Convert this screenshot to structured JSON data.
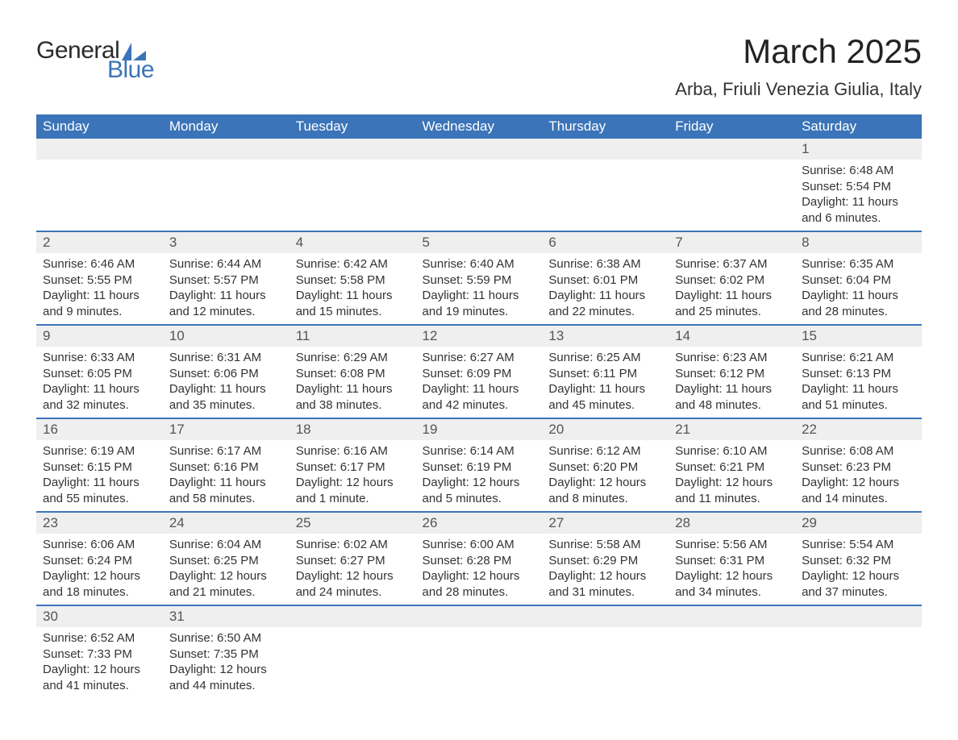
{
  "logo": {
    "general": "General",
    "blue": "Blue"
  },
  "title": "March 2025",
  "location": "Arba, Friuli Venezia Giulia, Italy",
  "colors": {
    "header_bg": "#3b74b8",
    "header_fg": "#ffffff",
    "daynum_bg": "#efefef",
    "border": "#3b74b8",
    "text": "#333333"
  },
  "day_names": [
    "Sunday",
    "Monday",
    "Tuesday",
    "Wednesday",
    "Thursday",
    "Friday",
    "Saturday"
  ],
  "weeks": [
    [
      null,
      null,
      null,
      null,
      null,
      null,
      {
        "n": "1",
        "sr": "Sunrise: 6:48 AM",
        "ss": "Sunset: 5:54 PM",
        "dl": "Daylight: 11 hours and 6 minutes."
      }
    ],
    [
      {
        "n": "2",
        "sr": "Sunrise: 6:46 AM",
        "ss": "Sunset: 5:55 PM",
        "dl": "Daylight: 11 hours and 9 minutes."
      },
      {
        "n": "3",
        "sr": "Sunrise: 6:44 AM",
        "ss": "Sunset: 5:57 PM",
        "dl": "Daylight: 11 hours and 12 minutes."
      },
      {
        "n": "4",
        "sr": "Sunrise: 6:42 AM",
        "ss": "Sunset: 5:58 PM",
        "dl": "Daylight: 11 hours and 15 minutes."
      },
      {
        "n": "5",
        "sr": "Sunrise: 6:40 AM",
        "ss": "Sunset: 5:59 PM",
        "dl": "Daylight: 11 hours and 19 minutes."
      },
      {
        "n": "6",
        "sr": "Sunrise: 6:38 AM",
        "ss": "Sunset: 6:01 PM",
        "dl": "Daylight: 11 hours and 22 minutes."
      },
      {
        "n": "7",
        "sr": "Sunrise: 6:37 AM",
        "ss": "Sunset: 6:02 PM",
        "dl": "Daylight: 11 hours and 25 minutes."
      },
      {
        "n": "8",
        "sr": "Sunrise: 6:35 AM",
        "ss": "Sunset: 6:04 PM",
        "dl": "Daylight: 11 hours and 28 minutes."
      }
    ],
    [
      {
        "n": "9",
        "sr": "Sunrise: 6:33 AM",
        "ss": "Sunset: 6:05 PM",
        "dl": "Daylight: 11 hours and 32 minutes."
      },
      {
        "n": "10",
        "sr": "Sunrise: 6:31 AM",
        "ss": "Sunset: 6:06 PM",
        "dl": "Daylight: 11 hours and 35 minutes."
      },
      {
        "n": "11",
        "sr": "Sunrise: 6:29 AM",
        "ss": "Sunset: 6:08 PM",
        "dl": "Daylight: 11 hours and 38 minutes."
      },
      {
        "n": "12",
        "sr": "Sunrise: 6:27 AM",
        "ss": "Sunset: 6:09 PM",
        "dl": "Daylight: 11 hours and 42 minutes."
      },
      {
        "n": "13",
        "sr": "Sunrise: 6:25 AM",
        "ss": "Sunset: 6:11 PM",
        "dl": "Daylight: 11 hours and 45 minutes."
      },
      {
        "n": "14",
        "sr": "Sunrise: 6:23 AM",
        "ss": "Sunset: 6:12 PM",
        "dl": "Daylight: 11 hours and 48 minutes."
      },
      {
        "n": "15",
        "sr": "Sunrise: 6:21 AM",
        "ss": "Sunset: 6:13 PM",
        "dl": "Daylight: 11 hours and 51 minutes."
      }
    ],
    [
      {
        "n": "16",
        "sr": "Sunrise: 6:19 AM",
        "ss": "Sunset: 6:15 PM",
        "dl": "Daylight: 11 hours and 55 minutes."
      },
      {
        "n": "17",
        "sr": "Sunrise: 6:17 AM",
        "ss": "Sunset: 6:16 PM",
        "dl": "Daylight: 11 hours and 58 minutes."
      },
      {
        "n": "18",
        "sr": "Sunrise: 6:16 AM",
        "ss": "Sunset: 6:17 PM",
        "dl": "Daylight: 12 hours and 1 minute."
      },
      {
        "n": "19",
        "sr": "Sunrise: 6:14 AM",
        "ss": "Sunset: 6:19 PM",
        "dl": "Daylight: 12 hours and 5 minutes."
      },
      {
        "n": "20",
        "sr": "Sunrise: 6:12 AM",
        "ss": "Sunset: 6:20 PM",
        "dl": "Daylight: 12 hours and 8 minutes."
      },
      {
        "n": "21",
        "sr": "Sunrise: 6:10 AM",
        "ss": "Sunset: 6:21 PM",
        "dl": "Daylight: 12 hours and 11 minutes."
      },
      {
        "n": "22",
        "sr": "Sunrise: 6:08 AM",
        "ss": "Sunset: 6:23 PM",
        "dl": "Daylight: 12 hours and 14 minutes."
      }
    ],
    [
      {
        "n": "23",
        "sr": "Sunrise: 6:06 AM",
        "ss": "Sunset: 6:24 PM",
        "dl": "Daylight: 12 hours and 18 minutes."
      },
      {
        "n": "24",
        "sr": "Sunrise: 6:04 AM",
        "ss": "Sunset: 6:25 PM",
        "dl": "Daylight: 12 hours and 21 minutes."
      },
      {
        "n": "25",
        "sr": "Sunrise: 6:02 AM",
        "ss": "Sunset: 6:27 PM",
        "dl": "Daylight: 12 hours and 24 minutes."
      },
      {
        "n": "26",
        "sr": "Sunrise: 6:00 AM",
        "ss": "Sunset: 6:28 PM",
        "dl": "Daylight: 12 hours and 28 minutes."
      },
      {
        "n": "27",
        "sr": "Sunrise: 5:58 AM",
        "ss": "Sunset: 6:29 PM",
        "dl": "Daylight: 12 hours and 31 minutes."
      },
      {
        "n": "28",
        "sr": "Sunrise: 5:56 AM",
        "ss": "Sunset: 6:31 PM",
        "dl": "Daylight: 12 hours and 34 minutes."
      },
      {
        "n": "29",
        "sr": "Sunrise: 5:54 AM",
        "ss": "Sunset: 6:32 PM",
        "dl": "Daylight: 12 hours and 37 minutes."
      }
    ],
    [
      {
        "n": "30",
        "sr": "Sunrise: 6:52 AM",
        "ss": "Sunset: 7:33 PM",
        "dl": "Daylight: 12 hours and 41 minutes."
      },
      {
        "n": "31",
        "sr": "Sunrise: 6:50 AM",
        "ss": "Sunset: 7:35 PM",
        "dl": "Daylight: 12 hours and 44 minutes."
      },
      null,
      null,
      null,
      null,
      null
    ]
  ]
}
